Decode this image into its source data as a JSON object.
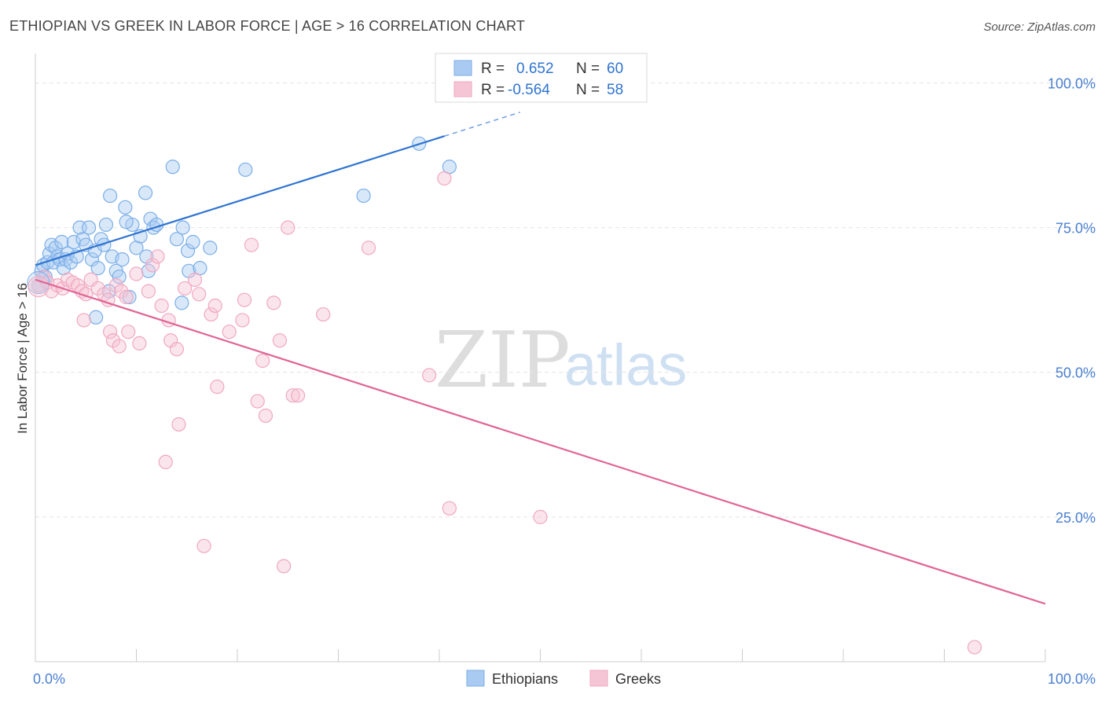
{
  "chart_data": {
    "type": "scatter",
    "title": "ETHIOPIAN VS GREEK IN LABOR FORCE | AGE > 16 CORRELATION CHART",
    "source": "Source: ZipAtlas.com",
    "xlabel": "",
    "ylabel": "In Labor Force | Age > 16",
    "xlim": [
      0,
      100
    ],
    "ylim": [
      0,
      104
    ],
    "x_tick_labels": [
      {
        "value": 0,
        "label": "0.0%"
      },
      {
        "value": 100,
        "label": "100.0%"
      }
    ],
    "y_tick_labels": [
      {
        "value": 25,
        "label": "25.0%"
      },
      {
        "value": 50,
        "label": "50.0%"
      },
      {
        "value": 75,
        "label": "75.0%"
      },
      {
        "value": 100,
        "label": "100.0%"
      }
    ],
    "watermark": {
      "zip": "ZIP",
      "atlas": "atlas"
    },
    "legend": {
      "r_label": "R =",
      "n_label": "N =",
      "entries": [
        {
          "r": "0.652",
          "n": "60"
        },
        {
          "r": "-0.564",
          "n": "58"
        }
      ]
    },
    "series": [
      {
        "name": "Ethiopians",
        "color": "#7aaee8",
        "fill": "#aacbf1",
        "line_color": "#2f74d0",
        "trend": {
          "x0": 0,
          "y0": 68.5,
          "x1": 40.5,
          "y1": 90.8,
          "dash_to_x": 48
        },
        "points": [
          [
            0.3,
            65.0
          ],
          [
            0.6,
            67.5
          ],
          [
            0.8,
            68.5
          ],
          [
            1.0,
            66.5
          ],
          [
            1.2,
            69.0
          ],
          [
            1.4,
            70.5
          ],
          [
            1.6,
            72.0
          ],
          [
            1.8,
            69.0
          ],
          [
            2.0,
            71.5
          ],
          [
            2.2,
            70.0
          ],
          [
            2.4,
            69.5
          ],
          [
            2.6,
            72.5
          ],
          [
            2.8,
            68.0
          ],
          [
            3.0,
            69.5
          ],
          [
            3.2,
            70.5
          ],
          [
            3.5,
            69.0
          ],
          [
            3.8,
            72.5
          ],
          [
            4.1,
            70.0
          ],
          [
            4.4,
            75.0
          ],
          [
            4.7,
            73.0
          ],
          [
            5.0,
            72.0
          ],
          [
            5.3,
            75.0
          ],
          [
            5.6,
            69.5
          ],
          [
            5.9,
            71.0
          ],
          [
            6.2,
            68.0
          ],
          [
            6.5,
            73.0
          ],
          [
            6.8,
            72.0
          ],
          [
            7.0,
            75.5
          ],
          [
            7.3,
            64.0
          ],
          [
            7.6,
            70.0
          ],
          [
            6.0,
            59.5
          ],
          [
            8.0,
            67.5
          ],
          [
            8.3,
            66.5
          ],
          [
            8.6,
            69.5
          ],
          [
            9.3,
            63.0
          ],
          [
            9.6,
            75.5
          ],
          [
            10.0,
            71.5
          ],
          [
            10.4,
            73.5
          ],
          [
            11.0,
            70.0
          ],
          [
            7.4,
            80.5
          ],
          [
            8.9,
            78.5
          ],
          [
            9.0,
            76.0
          ],
          [
            10.9,
            81.0
          ],
          [
            11.4,
            76.5
          ],
          [
            11.7,
            75.0
          ],
          [
            12.0,
            75.5
          ],
          [
            11.2,
            67.5
          ],
          [
            13.6,
            85.5
          ],
          [
            14.0,
            73.0
          ],
          [
            14.6,
            75.0
          ],
          [
            15.1,
            71.0
          ],
          [
            15.2,
            67.5
          ],
          [
            15.6,
            72.5
          ],
          [
            16.3,
            68.0
          ],
          [
            17.3,
            71.5
          ],
          [
            14.5,
            62.0
          ],
          [
            20.8,
            85.0
          ],
          [
            38.0,
            89.5
          ],
          [
            32.5,
            80.5
          ],
          [
            41.0,
            85.5
          ]
        ]
      },
      {
        "name": "Greeks",
        "color": "#f0a8c0",
        "fill": "#f6c5d5",
        "line_color": "#e06595",
        "trend": {
          "x0": 0,
          "y0": 66.0,
          "x1": 100,
          "y1": 10.0
        },
        "points": [
          [
            0.3,
            65.0
          ],
          [
            0.8,
            66.5
          ],
          [
            1.2,
            65.5
          ],
          [
            1.6,
            64.0
          ],
          [
            2.2,
            65.0
          ],
          [
            2.7,
            64.5
          ],
          [
            3.2,
            66.0
          ],
          [
            3.7,
            65.5
          ],
          [
            4.2,
            65.0
          ],
          [
            4.6,
            64.0
          ],
          [
            5.0,
            63.5
          ],
          [
            5.5,
            66.0
          ],
          [
            6.2,
            64.5
          ],
          [
            6.8,
            63.5
          ],
          [
            7.2,
            62.5
          ],
          [
            8.0,
            65.0
          ],
          [
            8.5,
            64.0
          ],
          [
            9.0,
            63.0
          ],
          [
            4.8,
            59.0
          ],
          [
            7.4,
            57.0
          ],
          [
            7.7,
            55.5
          ],
          [
            8.3,
            54.5
          ],
          [
            9.2,
            57.0
          ],
          [
            10.3,
            55.0
          ],
          [
            10.0,
            67.0
          ],
          [
            11.2,
            64.0
          ],
          [
            11.6,
            68.5
          ],
          [
            12.1,
            70.0
          ],
          [
            12.5,
            61.5
          ],
          [
            13.2,
            59.0
          ],
          [
            13.4,
            55.5
          ],
          [
            14.0,
            54.0
          ],
          [
            14.8,
            64.5
          ],
          [
            15.8,
            66.0
          ],
          [
            16.2,
            63.5
          ],
          [
            17.4,
            60.0
          ],
          [
            17.8,
            61.5
          ],
          [
            19.2,
            57.0
          ],
          [
            20.5,
            59.0
          ],
          [
            20.7,
            62.5
          ],
          [
            21.4,
            72.0
          ],
          [
            22.0,
            45.0
          ],
          [
            22.5,
            52.0
          ],
          [
            22.8,
            42.5
          ],
          [
            23.6,
            62.0
          ],
          [
            24.2,
            55.5
          ],
          [
            25.0,
            75.0
          ],
          [
            25.5,
            46.0
          ],
          [
            26.0,
            46.0
          ],
          [
            28.5,
            60.0
          ],
          [
            33.0,
            71.5
          ],
          [
            39.0,
            49.5
          ],
          [
            40.5,
            83.5
          ],
          [
            18.0,
            47.5
          ],
          [
            14.2,
            41.0
          ],
          [
            12.9,
            34.5
          ],
          [
            16.7,
            20.0
          ],
          [
            24.6,
            16.5
          ]
        ]
      }
    ],
    "extra_points": [
      {
        "series": "Greeks",
        "x": 41.0,
        "y": 26.5
      },
      {
        "series": "Greeks",
        "x": 50.0,
        "y": 25.0
      },
      {
        "series": "Greeks",
        "x": 93.0,
        "y": 2.5
      }
    ]
  }
}
